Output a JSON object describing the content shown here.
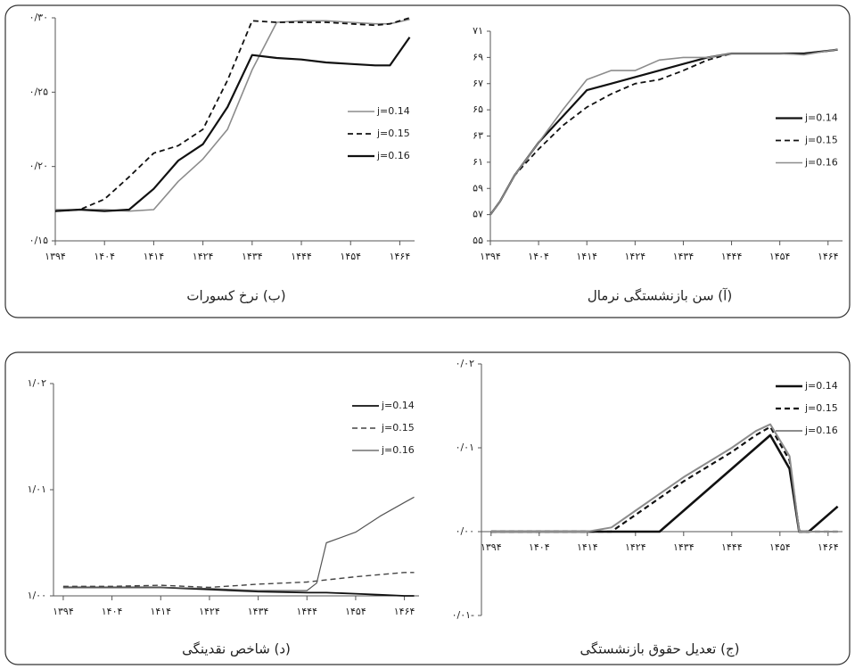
{
  "chart_data": [
    {
      "type": "line",
      "title": "(آ) سن بازنشستگی نرمال",
      "x": [
        1394,
        1396,
        1399,
        1404,
        1409,
        1414,
        1419,
        1424,
        1429,
        1434,
        1439,
        1444,
        1449,
        1454,
        1459,
        1464,
        1466
      ],
      "series": [
        {
          "name": "j=0.14",
          "color": "#111111",
          "values": [
            57,
            58,
            60,
            62.5,
            64.5,
            66.5,
            67,
            67.5,
            68,
            68.5,
            69,
            69.3,
            69.3,
            69.3,
            69.3,
            69.5,
            69.6
          ]
        },
        {
          "name": "j=0.15",
          "color": "#111111",
          "dash": true,
          "values": [
            57,
            58,
            60,
            62,
            63.8,
            65.2,
            66.2,
            67,
            67.3,
            68,
            68.8,
            69.3,
            69.3,
            69.3,
            69.3,
            69.5,
            69.6
          ]
        },
        {
          "name": "j=0.16",
          "color": "#8c8c8c",
          "values": [
            57,
            58,
            60,
            62.5,
            65,
            67.3,
            68,
            68,
            68.8,
            69,
            69,
            69.3,
            69.3,
            69.3,
            69.2,
            69.5,
            69.6
          ]
        }
      ],
      "xlim": [
        1394,
        1467
      ],
      "xticks": [
        {
          "value": 1394,
          "label": "۱۳۹۴"
        },
        {
          "value": 1404,
          "label": "۱۴۰۴"
        },
        {
          "value": 1414,
          "label": "۱۴۱۴"
        },
        {
          "value": 1424,
          "label": "۱۴۲۴"
        },
        {
          "value": 1434,
          "label": "۱۴۳۴"
        },
        {
          "value": 1444,
          "label": "۱۴۴۴"
        },
        {
          "value": 1454,
          "label": "۱۴۵۴"
        },
        {
          "value": 1464,
          "label": "۱۴۶۴"
        }
      ],
      "ylim": [
        55,
        71
      ],
      "yticks": [
        {
          "value": 55,
          "label": "۵۵"
        },
        {
          "value": 57,
          "label": "۵۷"
        },
        {
          "value": 59,
          "label": "۵۹"
        },
        {
          "value": 61,
          "label": "۶۱"
        },
        {
          "value": 63,
          "label": "۶۳"
        },
        {
          "value": 65,
          "label": "۶۵"
        },
        {
          "value": 67,
          "label": "۶۷"
        },
        {
          "value": 69,
          "label": "۶۹"
        },
        {
          "value": 71,
          "label": "۷۱"
        }
      ],
      "legend": "right"
    },
    {
      "type": "line",
      "title": "(ب) نرخ کسورات",
      "x": [
        1394,
        1399,
        1404,
        1409,
        1414,
        1419,
        1424,
        1429,
        1434,
        1439,
        1444,
        1449,
        1454,
        1459,
        1462,
        1466
      ],
      "series": [
        {
          "name": "j=0.14",
          "color": "#8c8c8c",
          "values": [
            0.171,
            0.171,
            0.171,
            0.17,
            0.171,
            0.19,
            0.205,
            0.225,
            0.265,
            0.297,
            0.298,
            0.298,
            0.297,
            0.296,
            0.296,
            0.299
          ]
        },
        {
          "name": "j=0.15",
          "color": "#111111",
          "dash": true,
          "values": [
            0.17,
            0.171,
            0.178,
            0.193,
            0.209,
            0.214,
            0.225,
            0.258,
            0.298,
            0.297,
            0.297,
            0.297,
            0.296,
            0.295,
            0.296,
            0.3
          ]
        },
        {
          "name": "j=0.16",
          "color": "#111111",
          "values": [
            0.17,
            0.171,
            0.17,
            0.171,
            0.185,
            0.204,
            0.215,
            0.24,
            0.275,
            0.273,
            0.272,
            0.27,
            0.269,
            0.268,
            0.268,
            0.287
          ]
        }
      ],
      "xlim": [
        1394,
        1467
      ],
      "xticks": [
        {
          "value": 1394,
          "label": "۱۳۹۴"
        },
        {
          "value": 1404,
          "label": "۱۴۰۴"
        },
        {
          "value": 1414,
          "label": "۱۴۱۴"
        },
        {
          "value": 1424,
          "label": "۱۴۲۴"
        },
        {
          "value": 1434,
          "label": "۱۴۳۴"
        },
        {
          "value": 1444,
          "label": "۱۴۴۴"
        },
        {
          "value": 1454,
          "label": "۱۴۵۴"
        },
        {
          "value": 1464,
          "label": "۱۴۶۴"
        }
      ],
      "ylim": [
        0.15,
        0.3
      ],
      "yticks": [
        {
          "value": 0.15,
          "label": "۰/۱۵"
        },
        {
          "value": 0.2,
          "label": "۰/۲۰"
        },
        {
          "value": 0.25,
          "label": "۰/۲۵"
        },
        {
          "value": 0.3,
          "label": "۰/۳۰"
        }
      ],
      "legend": "right"
    },
    {
      "type": "line",
      "title": "(ج) تعدیل حقوق بازنشستگی",
      "x": [
        1394,
        1404,
        1414,
        1419,
        1424,
        1429,
        1434,
        1444,
        1449,
        1452,
        1456,
        1458,
        1460,
        1464,
        1466
      ],
      "series": [
        {
          "name": "j=0.14",
          "color": "#111111",
          "values": [
            0,
            0,
            0,
            0,
            0,
            0,
            0.0025,
            0.0075,
            0.01,
            0.0115,
            0.0075,
            0,
            0,
            0.002,
            0.003
          ]
        },
        {
          "name": "j=0.15",
          "color": "#111111",
          "dash": true,
          "values": [
            0,
            0,
            0,
            0,
            0.002,
            0.004,
            0.006,
            0.0095,
            0.0115,
            0.0125,
            0.0085,
            0,
            0,
            0,
            0
          ]
        },
        {
          "name": "j=0.16",
          "color": "#8c8c8c",
          "values": [
            0,
            0,
            0,
            0.0005,
            0.0025,
            0.0045,
            0.0065,
            0.01,
            0.012,
            0.0128,
            0.009,
            0,
            0,
            0,
            0
          ]
        }
      ],
      "xlim": [
        1392,
        1467
      ],
      "xticks": [
        {
          "value": 1394,
          "label": "۱۳۹۴"
        },
        {
          "value": 1404,
          "label": "۱۴۰۴"
        },
        {
          "value": 1414,
          "label": "۱۴۱۴"
        },
        {
          "value": 1424,
          "label": "۱۴۲۴"
        },
        {
          "value": 1434,
          "label": "۱۴۳۴"
        },
        {
          "value": 1444,
          "label": "۱۴۴۴"
        },
        {
          "value": 1454,
          "label": "۱۴۵۴"
        },
        {
          "value": 1464,
          "label": "۱۴۶۴"
        }
      ],
      "ylim": [
        -0.01,
        0.02
      ],
      "yticks": [
        {
          "value": -0.01,
          "label": "۰/۰۱-"
        },
        {
          "value": 0,
          "label": "۰/۰۰"
        },
        {
          "value": 0.01,
          "label": "۰/۰۱"
        },
        {
          "value": 0.02,
          "label": "۰/۰۲"
        }
      ],
      "legend": "upper right"
    },
    {
      "type": "line",
      "title": "(د) شاخص نقدینگی",
      "x": [
        1394,
        1404,
        1414,
        1424,
        1434,
        1444,
        1446,
        1448,
        1454,
        1459,
        1464,
        1466
      ],
      "series": [
        {
          "name": "j=0.14",
          "color": "#111111",
          "values": [
            1.0008,
            1.0008,
            1.0008,
            1.0006,
            1.0004,
            1.0003,
            1.0003,
            1.0003,
            1.0002,
            1.0001,
            1.0,
            1.0
          ]
        },
        {
          "name": "j=0.15",
          "color": "#444444",
          "dash": true,
          "values": [
            1.0009,
            1.0009,
            1.001,
            1.0008,
            1.0011,
            1.0013,
            1.0014,
            1.0015,
            1.0018,
            1.002,
            1.0022,
            1.0022
          ]
        },
        {
          "name": "j=0.16",
          "color": "#555555",
          "values": [
            1.0008,
            1.0008,
            1.0008,
            1.0007,
            1.0005,
            1.0005,
            1.0012,
            1.005,
            1.006,
            1.0075,
            1.0088,
            1.0093
          ]
        }
      ],
      "xlim": [
        1392,
        1467
      ],
      "xticks": [
        {
          "value": 1394,
          "label": "۱۳۹۴"
        },
        {
          "value": 1404,
          "label": "۱۴۰۴"
        },
        {
          "value": 1414,
          "label": "۱۴۱۴"
        },
        {
          "value": 1424,
          "label": "۱۴۲۴"
        },
        {
          "value": 1434,
          "label": "۱۴۳۴"
        },
        {
          "value": 1444,
          "label": "۱۴۴۴"
        },
        {
          "value": 1454,
          "label": "۱۴۵۴"
        },
        {
          "value": 1464,
          "label": "۱۴۶۴"
        }
      ],
      "ylim": [
        1.0,
        1.02
      ],
      "yticks": [
        {
          "value": 1.0,
          "label": "۱/۰۰"
        },
        {
          "value": 1.01,
          "label": "۱/۰۱"
        },
        {
          "value": 1.02,
          "label": "۱/۰۲"
        }
      ],
      "legend": "upper right"
    }
  ]
}
